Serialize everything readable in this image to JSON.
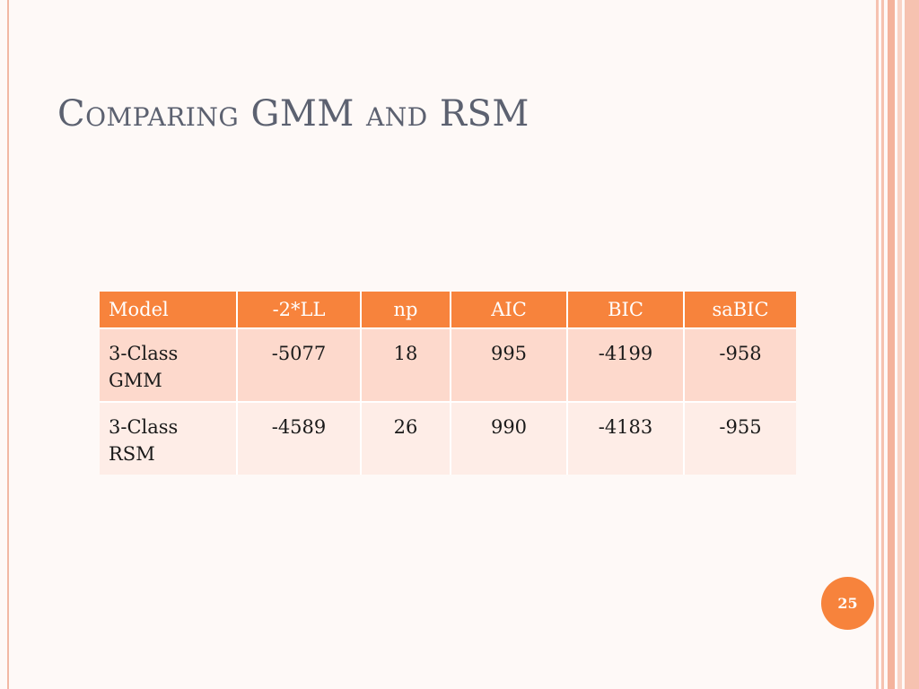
{
  "slide": {
    "title": "Comparing GMM and RSM",
    "page_number": "25"
  },
  "table": {
    "headers": [
      "Model",
      "-2*LL",
      "np",
      "AIC",
      "BIC",
      "saBIC"
    ],
    "rows": [
      [
        "3-Class GMM",
        "-5077",
        "18",
        "995",
        "-4199",
        "-958"
      ],
      [
        "3-Class RSM",
        "-4589",
        "26",
        "990",
        "-4183",
        "-955"
      ]
    ]
  },
  "colors": {
    "accent": "#f7833c",
    "row_odd": "#fdd9cc",
    "row_even": "#feede7",
    "title": "#5c6170"
  }
}
